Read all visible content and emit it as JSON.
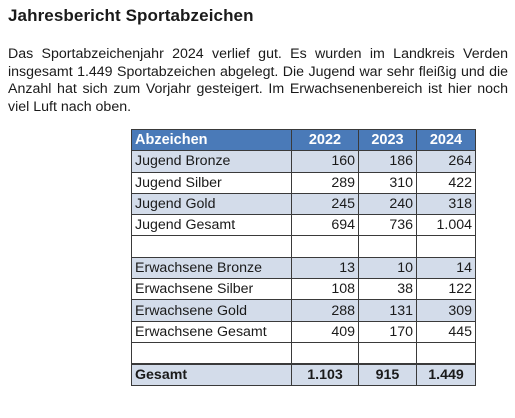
{
  "title": "Jahresbericht Sportabzeichen",
  "paragraph": "Das Sportabzeichenjahr 2024 verlief gut. Es wurden im Landkreis Verden insgesamt 1.449 Sportabzeichen abgelegt. Die Jugend war sehr fleißig und die Anzahl hat sich zum Vorjahr gesteigert. Im Erwachsenenbereich ist hier noch viel Luft nach oben.",
  "table": {
    "headers": [
      "Abzeichen",
      "2022",
      "2023",
      "2024"
    ],
    "rows": [
      [
        "Jugend Bronze",
        "160",
        "186",
        "264"
      ],
      [
        "Jugend Silber",
        "289",
        "310",
        "422"
      ],
      [
        "Jugend Gold",
        "245",
        "240",
        "318"
      ],
      [
        "Jugend Gesamt",
        "694",
        "736",
        "1.004"
      ],
      [
        "",
        "",
        "",
        ""
      ],
      [
        "Erwachsene Bronze",
        "13",
        "10",
        "14"
      ],
      [
        "Erwachsene Silber",
        "108",
        "38",
        "122"
      ],
      [
        "Erwachsene Gold",
        "288",
        "131",
        "309"
      ],
      [
        "Erwachsene Gesamt",
        "409",
        "170",
        "445"
      ],
      [
        "",
        "",
        "",
        ""
      ],
      [
        "Gesamt",
        "1.103",
        "915",
        "1.449"
      ]
    ]
  },
  "colors": {
    "header_bg": "#4a7ab8",
    "header_text": "#ffffff",
    "shaded_row": "#d3dcea",
    "border": "#3a3a3a"
  }
}
